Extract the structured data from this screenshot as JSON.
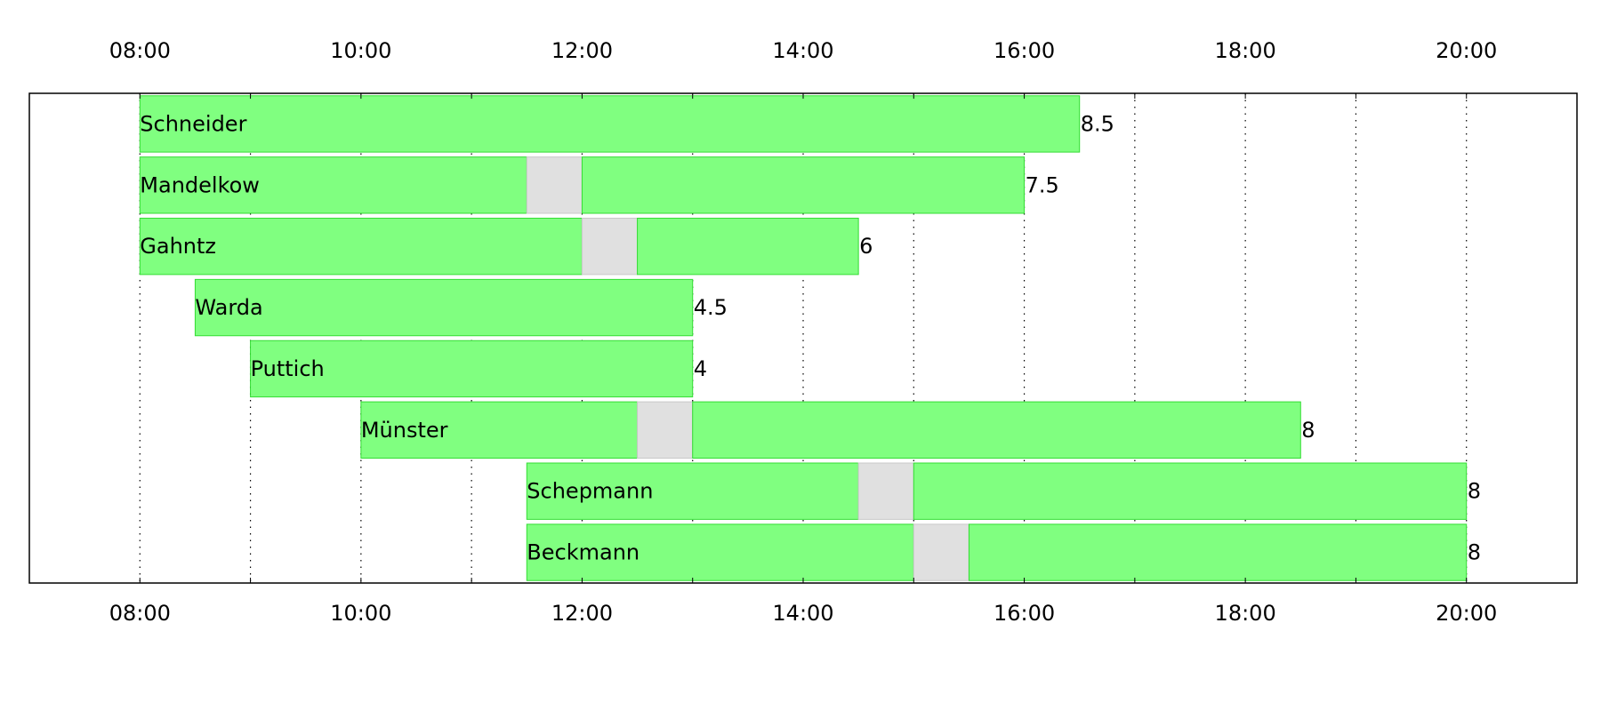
{
  "chart_data": {
    "type": "bar",
    "orientation": "horizontal",
    "x_unit": "time of day",
    "x_axis": {
      "range": [
        "07:00",
        "21:00"
      ],
      "ticks": [
        "08:00",
        "10:00",
        "12:00",
        "14:00",
        "16:00",
        "18:00",
        "20:00"
      ],
      "minor_grid_hours": 1,
      "tick_labels_top_and_bottom": true
    },
    "grid": true,
    "legend": "none",
    "colors": {
      "work": "#80ff80",
      "work_edge": "#33dd33",
      "break": "#e0e0e0",
      "break_edge": "#c8c8c8",
      "frame": "#000000",
      "grid": "#000000"
    },
    "rows": [
      {
        "name": "Schneider",
        "hours_label": "8.5",
        "start": "08:00",
        "end": "16:30",
        "break": null
      },
      {
        "name": "Mandelkow",
        "hours_label": "7.5",
        "start": "08:00",
        "end": "16:00",
        "break": {
          "start": "11:30",
          "end": "12:00"
        }
      },
      {
        "name": "Gahntz",
        "hours_label": "6",
        "start": "08:00",
        "end": "14:30",
        "break": {
          "start": "12:00",
          "end": "12:30"
        }
      },
      {
        "name": "Warda",
        "hours_label": "4.5",
        "start": "08:30",
        "end": "13:00",
        "break": null
      },
      {
        "name": "Puttich",
        "hours_label": "4",
        "start": "09:00",
        "end": "13:00",
        "break": null
      },
      {
        "name": "Münster",
        "hours_label": "8",
        "start": "10:00",
        "end": "18:30",
        "break": {
          "start": "12:30",
          "end": "13:00"
        }
      },
      {
        "name": "Schepmann",
        "hours_label": "8",
        "start": "11:30",
        "end": "20:00",
        "break": {
          "start": "14:30",
          "end": "15:00"
        }
      },
      {
        "name": "Beckmann",
        "hours_label": "8",
        "start": "11:30",
        "end": "20:00",
        "break": {
          "start": "15:00",
          "end": "15:30"
        }
      }
    ]
  }
}
